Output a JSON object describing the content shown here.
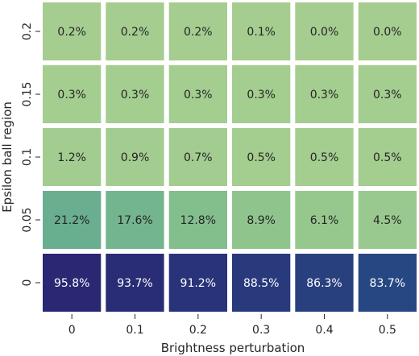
{
  "chart_data": {
    "type": "heatmap",
    "title": "",
    "xlabel": "Brightness perturbation",
    "ylabel": "Epsilon ball region",
    "x_categories": [
      "0",
      "0.1",
      "0.2",
      "0.3",
      "0.4",
      "0.5"
    ],
    "y_categories": [
      "0.2",
      "0.15",
      "0.1",
      "0.05",
      "0"
    ],
    "values": [
      [
        0.2,
        0.2,
        0.2,
        0.1,
        0.0,
        0.0
      ],
      [
        0.3,
        0.3,
        0.3,
        0.3,
        0.3,
        0.3
      ],
      [
        1.2,
        0.9,
        0.7,
        0.5,
        0.5,
        0.5
      ],
      [
        21.2,
        17.6,
        12.8,
        8.9,
        6.1,
        4.5
      ],
      [
        95.8,
        93.7,
        91.2,
        88.5,
        86.3,
        83.7
      ]
    ],
    "cell_labels": [
      [
        "0.2%",
        "0.2%",
        "0.2%",
        "0.1%",
        "0.0%",
        "0.0%"
      ],
      [
        "0.3%",
        "0.3%",
        "0.3%",
        "0.3%",
        "0.3%",
        "0.3%"
      ],
      [
        "1.2%",
        "0.9%",
        "0.7%",
        "0.5%",
        "0.5%",
        "0.5%"
      ],
      [
        "21.2%",
        "17.6%",
        "12.8%",
        "8.9%",
        "6.1%",
        "4.5%"
      ],
      [
        "95.8%",
        "93.7%",
        "91.2%",
        "88.5%",
        "86.3%",
        "83.7%"
      ]
    ],
    "colormap": "crest",
    "vmin": 0,
    "vmax": 100,
    "colorbar": false,
    "grid": false
  }
}
